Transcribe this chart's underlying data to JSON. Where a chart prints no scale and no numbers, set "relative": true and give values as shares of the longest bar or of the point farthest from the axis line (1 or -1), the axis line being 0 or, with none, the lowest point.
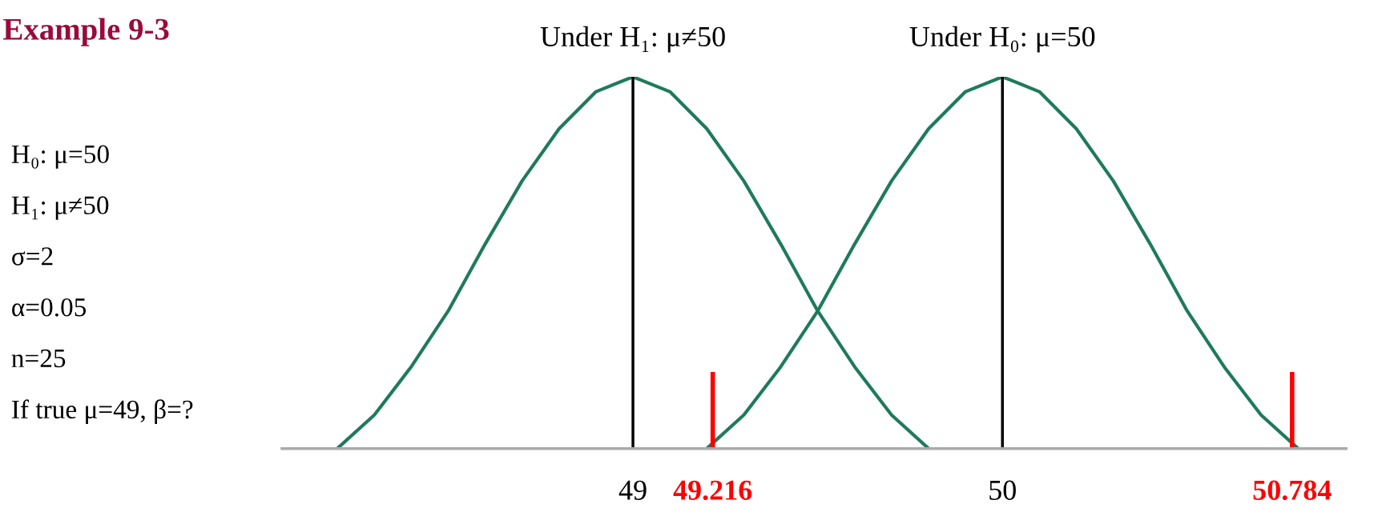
{
  "chart_data": {
    "type": "line",
    "title": "Example 9-3",
    "relative": true,
    "series": [
      {
        "name": "Under H₁: μ≠50",
        "color": "#1f7a5c",
        "x": [
          48.2,
          48.3,
          48.4,
          48.5,
          48.6,
          48.7,
          48.8,
          48.9,
          49.0,
          49.1,
          49.2,
          49.3,
          49.4,
          49.5,
          49.6,
          49.7,
          49.8
        ],
        "values": [
          0,
          0.09,
          0.22,
          0.37,
          0.55,
          0.72,
          0.86,
          0.96,
          1,
          0.96,
          0.86,
          0.72,
          0.55,
          0.37,
          0.22,
          0.09,
          0
        ]
      },
      {
        "name": "Under H₀: μ=50",
        "color": "#1f7a5c",
        "x": [
          49.2,
          49.3,
          49.4,
          49.5,
          49.6,
          49.7,
          49.8,
          49.9,
          50.0,
          50.1,
          50.2,
          50.3,
          50.4,
          50.5,
          50.6,
          50.7,
          50.8
        ],
        "values": [
          0,
          0.09,
          0.22,
          0.37,
          0.55,
          0.72,
          0.86,
          0.96,
          1,
          0.96,
          0.86,
          0.72,
          0.55,
          0.37,
          0.22,
          0.09,
          0
        ]
      }
    ],
    "xlim": [
      48.05,
      50.93
    ],
    "xticks": [
      49,
      50
    ],
    "tick_labels": "x",
    "ref_lines": [
      {
        "axis": "x",
        "value": 49,
        "label": null,
        "color": "#000000"
      },
      {
        "axis": "x",
        "value": 50,
        "label": null,
        "color": "#000000"
      },
      {
        "axis": "x",
        "value": 49.216,
        "label": "49.216",
        "color": "#ff0000"
      },
      {
        "axis": "x",
        "value": 50.784,
        "label": "50.784",
        "color": "#ff0000"
      }
    ],
    "annotations": [
      "H₀: μ=50",
      "H₁: μ≠50",
      "σ=2",
      "α=0.05",
      "n=25",
      "If true μ=49, β=?"
    ],
    "marker": "none",
    "line_style": "solid"
  }
}
